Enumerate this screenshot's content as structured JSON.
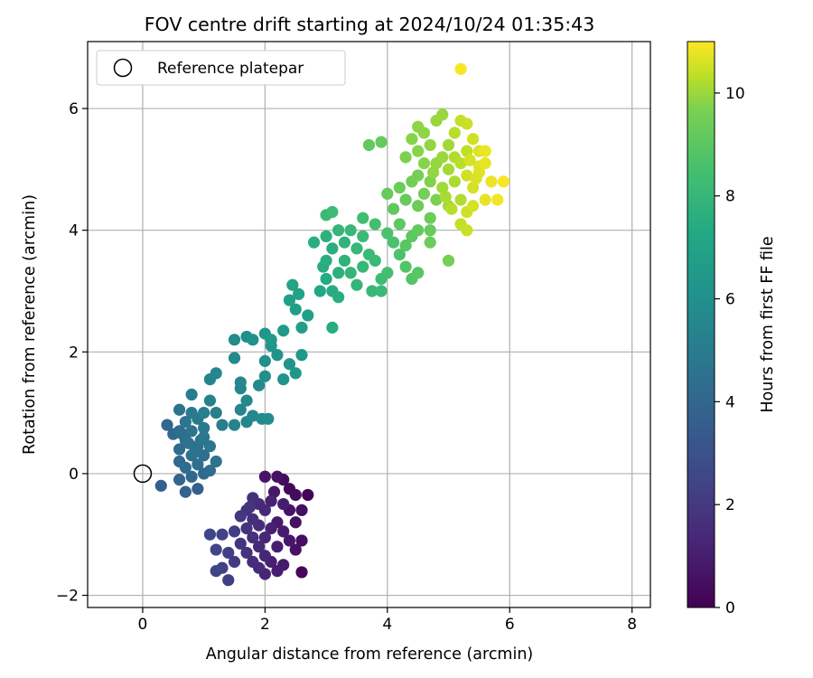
{
  "chart_data": {
    "type": "scatter",
    "title": "FOV centre drift starting at 2024/10/24 01:35:43",
    "xlabel": "Angular distance from reference (arcmin)",
    "ylabel": "Rotation from reference (arcmin)",
    "xlim": [
      -0.9,
      8.3
    ],
    "ylim": [
      -2.2,
      7.1
    ],
    "xticks": [
      0,
      2,
      4,
      6,
      8
    ],
    "yticks": [
      -2,
      0,
      2,
      4,
      6
    ],
    "grid": true,
    "legend": {
      "position": "top-left",
      "entries": [
        "Reference platepar"
      ]
    },
    "reference_point": {
      "x": 0,
      "y": 0
    },
    "colorbar": {
      "label": "Hours from first FF file",
      "range": [
        0,
        11
      ],
      "ticks": [
        0,
        2,
        4,
        6,
        8,
        10
      ],
      "colormap": "viridis"
    },
    "points": [
      {
        "x": 2.2,
        "y": -0.05,
        "t": 0.5
      },
      {
        "x": 2.3,
        "y": -0.1,
        "t": 0.3
      },
      {
        "x": 2.0,
        "y": -0.05,
        "t": 0.6
      },
      {
        "x": 2.4,
        "y": -0.25,
        "t": 0.2
      },
      {
        "x": 2.5,
        "y": -0.35,
        "t": 0.3
      },
      {
        "x": 2.7,
        "y": -0.35,
        "t": 0.1
      },
      {
        "x": 1.8,
        "y": -0.4,
        "t": 1.5
      },
      {
        "x": 1.9,
        "y": -0.5,
        "t": 1.3
      },
      {
        "x": 2.1,
        "y": -0.45,
        "t": 1.0
      },
      {
        "x": 2.3,
        "y": -0.5,
        "t": 0.9
      },
      {
        "x": 1.7,
        "y": -0.6,
        "t": 1.6
      },
      {
        "x": 2.0,
        "y": -0.6,
        "t": 1.2
      },
      {
        "x": 2.4,
        "y": -0.6,
        "t": 0.6
      },
      {
        "x": 2.6,
        "y": -0.6,
        "t": 0.4
      },
      {
        "x": 1.6,
        "y": -0.7,
        "t": 1.8
      },
      {
        "x": 1.8,
        "y": -0.75,
        "t": 1.5
      },
      {
        "x": 2.2,
        "y": -0.8,
        "t": 0.8
      },
      {
        "x": 2.5,
        "y": -0.8,
        "t": 0.5
      },
      {
        "x": 1.7,
        "y": -0.9,
        "t": 1.6
      },
      {
        "x": 1.9,
        "y": -0.85,
        "t": 1.4
      },
      {
        "x": 2.1,
        "y": -0.9,
        "t": 1.0
      },
      {
        "x": 2.3,
        "y": -0.95,
        "t": 0.8
      },
      {
        "x": 1.5,
        "y": -0.95,
        "t": 2.0
      },
      {
        "x": 1.3,
        "y": -1.0,
        "t": 2.1
      },
      {
        "x": 1.1,
        "y": -1.0,
        "t": 2.3
      },
      {
        "x": 1.8,
        "y": -1.05,
        "t": 1.5
      },
      {
        "x": 2.0,
        "y": -1.05,
        "t": 1.2
      },
      {
        "x": 2.4,
        "y": -1.1,
        "t": 0.7
      },
      {
        "x": 2.6,
        "y": -1.1,
        "t": 0.4
      },
      {
        "x": 1.6,
        "y": -1.15,
        "t": 1.7
      },
      {
        "x": 1.9,
        "y": -1.2,
        "t": 1.3
      },
      {
        "x": 2.2,
        "y": -1.2,
        "t": 0.9
      },
      {
        "x": 1.2,
        "y": -1.25,
        "t": 2.2
      },
      {
        "x": 1.4,
        "y": -1.3,
        "t": 2.0
      },
      {
        "x": 1.7,
        "y": -1.3,
        "t": 1.6
      },
      {
        "x": 2.0,
        "y": -1.35,
        "t": 1.2
      },
      {
        "x": 2.5,
        "y": -1.25,
        "t": 0.5
      },
      {
        "x": 1.5,
        "y": -1.45,
        "t": 1.9
      },
      {
        "x": 1.8,
        "y": -1.45,
        "t": 1.4
      },
      {
        "x": 2.1,
        "y": -1.45,
        "t": 1.0
      },
      {
        "x": 2.3,
        "y": -1.5,
        "t": 0.8
      },
      {
        "x": 1.3,
        "y": -1.55,
        "t": 2.1
      },
      {
        "x": 1.9,
        "y": -1.55,
        "t": 1.3
      },
      {
        "x": 2.2,
        "y": -1.6,
        "t": 0.9
      },
      {
        "x": 1.2,
        "y": -1.6,
        "t": 2.2
      },
      {
        "x": 2.6,
        "y": -1.62,
        "t": 0.2
      },
      {
        "x": 2.0,
        "y": -1.65,
        "t": 1.1
      },
      {
        "x": 1.4,
        "y": -1.75,
        "t": 2.0
      },
      {
        "x": 2.15,
        "y": -0.3,
        "t": 0.7
      },
      {
        "x": 1.75,
        "y": -0.55,
        "t": 1.7
      },
      {
        "x": 0.3,
        "y": -0.2,
        "t": 3.3
      },
      {
        "x": 0.7,
        "y": -0.3,
        "t": 3.4
      },
      {
        "x": 0.9,
        "y": -0.25,
        "t": 3.3
      },
      {
        "x": 0.6,
        "y": -0.1,
        "t": 3.6
      },
      {
        "x": 0.8,
        "y": -0.05,
        "t": 3.7
      },
      {
        "x": 1.0,
        "y": 0.0,
        "t": 3.8
      },
      {
        "x": 0.7,
        "y": 0.1,
        "t": 3.9
      },
      {
        "x": 1.1,
        "y": 0.05,
        "t": 3.9
      },
      {
        "x": 0.9,
        "y": 0.15,
        "t": 4.0
      },
      {
        "x": 0.6,
        "y": 0.2,
        "t": 3.8
      },
      {
        "x": 1.2,
        "y": 0.2,
        "t": 4.2
      },
      {
        "x": 0.8,
        "y": 0.3,
        "t": 4.1
      },
      {
        "x": 1.0,
        "y": 0.3,
        "t": 4.0
      },
      {
        "x": 0.6,
        "y": 0.4,
        "t": 3.9
      },
      {
        "x": 0.9,
        "y": 0.45,
        "t": 4.2
      },
      {
        "x": 1.1,
        "y": 0.45,
        "t": 4.3
      },
      {
        "x": 0.7,
        "y": 0.55,
        "t": 4.0
      },
      {
        "x": 1.0,
        "y": 0.6,
        "t": 4.4
      },
      {
        "x": 0.5,
        "y": 0.65,
        "t": 3.7
      },
      {
        "x": 0.8,
        "y": 0.7,
        "t": 4.2
      },
      {
        "x": 0.6,
        "y": 0.7,
        "t": 3.9
      },
      {
        "x": 1.0,
        "y": 0.75,
        "t": 4.5
      },
      {
        "x": 0.4,
        "y": 0.8,
        "t": 3.7
      },
      {
        "x": 0.7,
        "y": 0.85,
        "t": 4.3
      },
      {
        "x": 0.9,
        "y": 0.9,
        "t": 4.4
      },
      {
        "x": 1.3,
        "y": 0.8,
        "t": 4.6
      },
      {
        "x": 1.5,
        "y": 0.8,
        "t": 4.9
      },
      {
        "x": 1.7,
        "y": 0.85,
        "t": 5.0
      },
      {
        "x": 0.8,
        "y": 1.0,
        "t": 4.5
      },
      {
        "x": 1.0,
        "y": 1.0,
        "t": 4.6
      },
      {
        "x": 1.2,
        "y": 1.0,
        "t": 4.7
      },
      {
        "x": 0.6,
        "y": 1.05,
        "t": 4.2
      },
      {
        "x": 1.6,
        "y": 1.05,
        "t": 5.0
      },
      {
        "x": 1.8,
        "y": 0.95,
        "t": 5.1
      },
      {
        "x": 1.95,
        "y": 0.9,
        "t": 5.2
      },
      {
        "x": 2.05,
        "y": 0.9,
        "t": 5.3
      },
      {
        "x": 0.8,
        "y": 1.3,
        "t": 4.6
      },
      {
        "x": 1.1,
        "y": 1.2,
        "t": 4.8
      },
      {
        "x": 1.7,
        "y": 1.2,
        "t": 5.1
      },
      {
        "x": 1.6,
        "y": 1.4,
        "t": 5.0
      },
      {
        "x": 1.9,
        "y": 1.45,
        "t": 5.2
      },
      {
        "x": 1.1,
        "y": 1.55,
        "t": 4.9
      },
      {
        "x": 1.6,
        "y": 1.5,
        "t": 5.1
      },
      {
        "x": 1.2,
        "y": 1.65,
        "t": 5.0
      },
      {
        "x": 2.0,
        "y": 1.6,
        "t": 5.4
      },
      {
        "x": 2.3,
        "y": 1.55,
        "t": 5.6
      },
      {
        "x": 2.5,
        "y": 1.65,
        "t": 5.8
      },
      {
        "x": 1.5,
        "y": 1.9,
        "t": 5.2
      },
      {
        "x": 2.0,
        "y": 1.85,
        "t": 5.5
      },
      {
        "x": 2.4,
        "y": 1.8,
        "t": 5.7
      },
      {
        "x": 2.2,
        "y": 1.95,
        "t": 5.6
      },
      {
        "x": 2.6,
        "y": 1.95,
        "t": 5.9
      },
      {
        "x": 1.5,
        "y": 2.2,
        "t": 5.3
      },
      {
        "x": 1.8,
        "y": 2.2,
        "t": 5.5
      },
      {
        "x": 2.1,
        "y": 2.1,
        "t": 5.7
      },
      {
        "x": 1.7,
        "y": 2.25,
        "t": 5.4
      },
      {
        "x": 2.0,
        "y": 2.3,
        "t": 5.8
      },
      {
        "x": 2.3,
        "y": 2.35,
        "t": 6.0
      },
      {
        "x": 2.6,
        "y": 2.4,
        "t": 6.1
      },
      {
        "x": 2.7,
        "y": 2.6,
        "t": 6.2
      },
      {
        "x": 2.5,
        "y": 2.7,
        "t": 6.1
      },
      {
        "x": 2.4,
        "y": 2.85,
        "t": 6.2
      },
      {
        "x": 2.55,
        "y": 2.95,
        "t": 6.3
      },
      {
        "x": 2.45,
        "y": 3.1,
        "t": 6.4
      },
      {
        "x": 3.1,
        "y": 2.4,
        "t": 6.8
      },
      {
        "x": 2.1,
        "y": 2.2,
        "t": 5.9
      },
      {
        "x": 0.65,
        "y": 0.65,
        "t": 4.0
      },
      {
        "x": 0.75,
        "y": 0.5,
        "t": 4.1
      },
      {
        "x": 0.85,
        "y": 0.35,
        "t": 4.2
      },
      {
        "x": 0.95,
        "y": 0.55,
        "t": 4.3
      },
      {
        "x": 2.9,
        "y": 3.0,
        "t": 6.6
      },
      {
        "x": 3.0,
        "y": 3.2,
        "t": 6.7
      },
      {
        "x": 3.1,
        "y": 3.0,
        "t": 6.8
      },
      {
        "x": 3.2,
        "y": 2.9,
        "t": 6.9
      },
      {
        "x": 3.2,
        "y": 3.3,
        "t": 7.0
      },
      {
        "x": 3.0,
        "y": 3.5,
        "t": 6.9
      },
      {
        "x": 2.95,
        "y": 3.4,
        "t": 6.8
      },
      {
        "x": 3.3,
        "y": 3.5,
        "t": 7.1
      },
      {
        "x": 3.4,
        "y": 3.3,
        "t": 7.2
      },
      {
        "x": 3.5,
        "y": 3.1,
        "t": 7.2
      },
      {
        "x": 3.6,
        "y": 3.4,
        "t": 7.3
      },
      {
        "x": 3.7,
        "y": 3.6,
        "t": 7.4
      },
      {
        "x": 3.8,
        "y": 3.5,
        "t": 7.4
      },
      {
        "x": 3.9,
        "y": 3.2,
        "t": 7.5
      },
      {
        "x": 3.75,
        "y": 3.0,
        "t": 7.3
      },
      {
        "x": 3.9,
        "y": 3.0,
        "t": 7.4
      },
      {
        "x": 3.1,
        "y": 3.7,
        "t": 6.9
      },
      {
        "x": 3.3,
        "y": 3.8,
        "t": 7.1
      },
      {
        "x": 3.5,
        "y": 3.7,
        "t": 7.3
      },
      {
        "x": 3.6,
        "y": 3.9,
        "t": 7.4
      },
      {
        "x": 3.2,
        "y": 4.0,
        "t": 7.2
      },
      {
        "x": 3.4,
        "y": 4.0,
        "t": 7.3
      },
      {
        "x": 3.0,
        "y": 3.9,
        "t": 7.0
      },
      {
        "x": 2.8,
        "y": 3.8,
        "t": 6.9
      },
      {
        "x": 3.0,
        "y": 4.25,
        "t": 7.4
      },
      {
        "x": 3.1,
        "y": 4.3,
        "t": 7.5
      },
      {
        "x": 3.6,
        "y": 4.2,
        "t": 7.6
      },
      {
        "x": 3.8,
        "y": 4.1,
        "t": 7.7
      },
      {
        "x": 4.0,
        "y": 3.95,
        "t": 7.8
      },
      {
        "x": 4.1,
        "y": 3.8,
        "t": 7.8
      },
      {
        "x": 4.2,
        "y": 3.6,
        "t": 7.9
      },
      {
        "x": 4.0,
        "y": 3.3,
        "t": 7.7
      },
      {
        "x": 4.3,
        "y": 3.4,
        "t": 8.0
      },
      {
        "x": 4.4,
        "y": 3.2,
        "t": 8.0
      },
      {
        "x": 4.5,
        "y": 3.3,
        "t": 8.1
      },
      {
        "x": 4.3,
        "y": 3.75,
        "t": 8.1
      },
      {
        "x": 4.4,
        "y": 3.9,
        "t": 8.2
      },
      {
        "x": 4.2,
        "y": 4.1,
        "t": 8.2
      },
      {
        "x": 4.5,
        "y": 4.0,
        "t": 8.3
      },
      {
        "x": 4.7,
        "y": 4.0,
        "t": 8.4
      },
      {
        "x": 4.7,
        "y": 4.2,
        "t": 8.5
      },
      {
        "x": 4.1,
        "y": 4.35,
        "t": 8.3
      },
      {
        "x": 4.3,
        "y": 4.5,
        "t": 8.4
      },
      {
        "x": 4.5,
        "y": 4.4,
        "t": 8.5
      },
      {
        "x": 4.0,
        "y": 4.6,
        "t": 8.4
      },
      {
        "x": 4.2,
        "y": 4.7,
        "t": 8.5
      },
      {
        "x": 4.4,
        "y": 4.8,
        "t": 8.6
      },
      {
        "x": 3.7,
        "y": 5.4,
        "t": 8.3
      },
      {
        "x": 3.9,
        "y": 5.45,
        "t": 8.4
      },
      {
        "x": 4.7,
        "y": 3.8,
        "t": 8.5
      },
      {
        "x": 5.0,
        "y": 3.5,
        "t": 8.7
      },
      {
        "x": 4.6,
        "y": 4.6,
        "t": 8.7
      },
      {
        "x": 4.8,
        "y": 4.5,
        "t": 8.8
      },
      {
        "x": 4.5,
        "y": 4.9,
        "t": 8.7
      },
      {
        "x": 4.7,
        "y": 4.8,
        "t": 8.9
      },
      {
        "x": 4.3,
        "y": 5.2,
        "t": 8.8
      },
      {
        "x": 4.5,
        "y": 5.3,
        "t": 9.0
      },
      {
        "x": 4.4,
        "y": 5.5,
        "t": 9.0
      },
      {
        "x": 4.6,
        "y": 5.6,
        "t": 9.1
      },
      {
        "x": 4.5,
        "y": 5.7,
        "t": 9.1
      },
      {
        "x": 4.8,
        "y": 5.8,
        "t": 9.3
      },
      {
        "x": 4.9,
        "y": 5.9,
        "t": 9.3
      },
      {
        "x": 4.7,
        "y": 5.4,
        "t": 9.2
      },
      {
        "x": 4.9,
        "y": 5.2,
        "t": 9.3
      },
      {
        "x": 5.0,
        "y": 5.4,
        "t": 9.4
      },
      {
        "x": 4.8,
        "y": 5.1,
        "t": 9.2
      },
      {
        "x": 5.0,
        "y": 5.0,
        "t": 9.5
      },
      {
        "x": 4.9,
        "y": 4.7,
        "t": 9.4
      },
      {
        "x": 5.1,
        "y": 4.8,
        "t": 9.6
      },
      {
        "x": 5.0,
        "y": 4.4,
        "t": 9.5
      },
      {
        "x": 5.2,
        "y": 4.5,
        "t": 9.7
      },
      {
        "x": 5.2,
        "y": 5.1,
        "t": 9.8
      },
      {
        "x": 5.3,
        "y": 5.3,
        "t": 9.9
      },
      {
        "x": 5.1,
        "y": 5.6,
        "t": 9.8
      },
      {
        "x": 5.2,
        "y": 5.8,
        "t": 10.0
      },
      {
        "x": 5.3,
        "y": 5.75,
        "t": 10.1
      },
      {
        "x": 5.4,
        "y": 5.5,
        "t": 10.2
      },
      {
        "x": 5.5,
        "y": 5.3,
        "t": 10.4
      },
      {
        "x": 5.3,
        "y": 4.9,
        "t": 10.2
      },
      {
        "x": 5.4,
        "y": 4.7,
        "t": 10.3
      },
      {
        "x": 5.5,
        "y": 4.95,
        "t": 10.5
      },
      {
        "x": 5.6,
        "y": 5.1,
        "t": 10.6
      },
      {
        "x": 5.4,
        "y": 4.4,
        "t": 10.3
      },
      {
        "x": 5.6,
        "y": 4.5,
        "t": 10.6
      },
      {
        "x": 5.3,
        "y": 4.3,
        "t": 10.2
      },
      {
        "x": 5.2,
        "y": 4.1,
        "t": 10.0
      },
      {
        "x": 5.3,
        "y": 4.0,
        "t": 10.1
      },
      {
        "x": 5.7,
        "y": 4.8,
        "t": 10.7
      },
      {
        "x": 5.8,
        "y": 4.5,
        "t": 10.8
      },
      {
        "x": 5.9,
        "y": 4.8,
        "t": 10.9
      },
      {
        "x": 5.6,
        "y": 5.3,
        "t": 10.7
      },
      {
        "x": 5.5,
        "y": 5.05,
        "t": 10.5
      },
      {
        "x": 5.2,
        "y": 6.65,
        "t": 10.9
      },
      {
        "x": 4.6,
        "y": 5.1,
        "t": 9.0
      },
      {
        "x": 5.1,
        "y": 5.2,
        "t": 9.7
      },
      {
        "x": 5.35,
        "y": 5.15,
        "t": 10.3
      },
      {
        "x": 5.45,
        "y": 4.85,
        "t": 10.4
      },
      {
        "x": 4.95,
        "y": 4.55,
        "t": 9.6
      },
      {
        "x": 4.75,
        "y": 4.95,
        "t": 9.2
      },
      {
        "x": 5.05,
        "y": 4.35,
        "t": 9.8
      }
    ]
  }
}
